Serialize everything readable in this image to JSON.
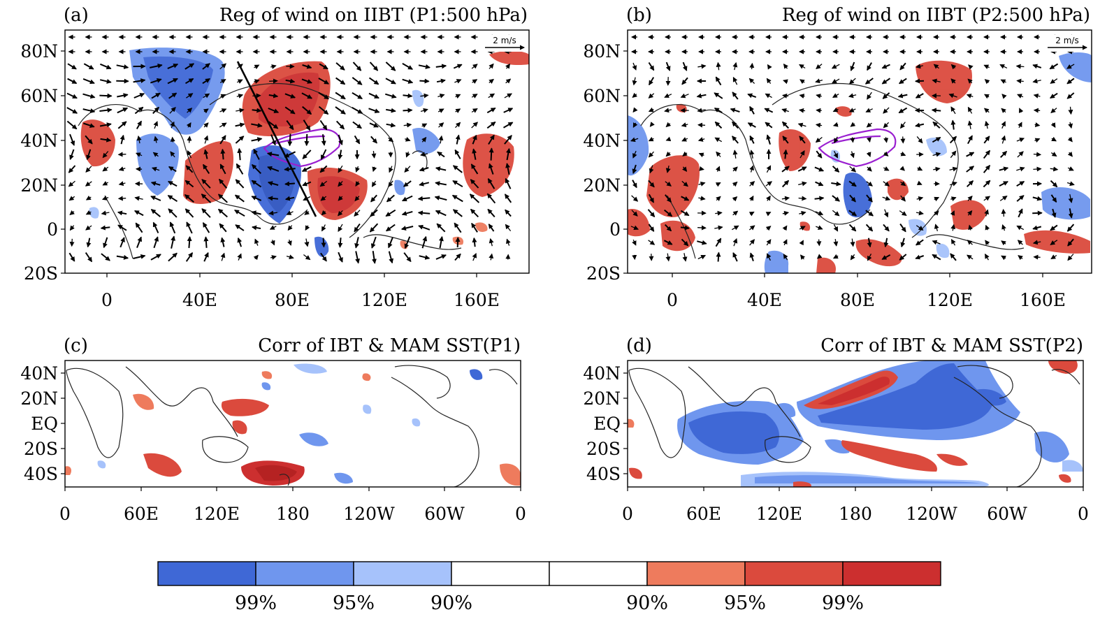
{
  "colors": {
    "sig_neg_99": "#3f68d6",
    "sig_neg_95": "#6f96ee",
    "sig_neg_90": "#a6c2fb",
    "neutral": "#ffffff",
    "sig_pos_90": "#ee7b5d",
    "sig_pos_95": "#db4a3d",
    "sig_pos_99": "#cc2f2f",
    "plateau_contour": "#9a1fd0",
    "vectors": "#000000"
  },
  "panels": [
    {
      "id": "a",
      "label": "(a)",
      "title": "Reg of wind on IIBT (P1:500 hPa)",
      "lat_ticks": [
        "80N",
        "60N",
        "40N",
        "20N",
        "0",
        "20S"
      ],
      "lon_ticks": [
        "0",
        "40E",
        "80E",
        "120E",
        "160E"
      ],
      "ref_vector": "2 m/s"
    },
    {
      "id": "b",
      "label": "(b)",
      "title": "Reg of wind on IIBT (P2:500 hPa)",
      "lat_ticks": [
        "80N",
        "60N",
        "40N",
        "20N",
        "0",
        "20S"
      ],
      "lon_ticks": [
        "0",
        "40E",
        "80E",
        "120E",
        "160E"
      ],
      "ref_vector": "2 m/s"
    },
    {
      "id": "c",
      "label": "(c)",
      "title": "Corr of IBT & MAM SST(P1)",
      "lat_ticks": [
        "40N",
        "20N",
        "EQ",
        "20S",
        "40S"
      ],
      "lon_ticks": [
        "0",
        "60E",
        "120E",
        "180",
        "120W",
        "60W",
        "0"
      ]
    },
    {
      "id": "d",
      "label": "(d)",
      "title": "Corr of IBT & MAM SST(P2)",
      "lat_ticks": [
        "40N",
        "20N",
        "EQ",
        "20S",
        "40S"
      ],
      "lon_ticks": [
        "0",
        "60E",
        "120E",
        "180",
        "120W",
        "60W",
        "0"
      ]
    }
  ],
  "colorbar": {
    "labels": [
      "99%",
      "95%",
      "90%",
      "90%",
      "95%",
      "99%"
    ]
  }
}
